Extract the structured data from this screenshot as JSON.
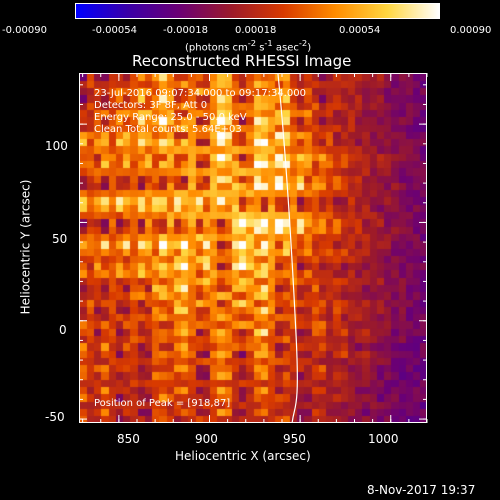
{
  "colorbar": {
    "stops": [
      "#0000ff",
      "#3a00a8",
      "#6b0074",
      "#9c1a2a",
      "#d83a00",
      "#ff8c00",
      "#ffd640",
      "#ffffff"
    ],
    "ticks": [
      "-0.00090",
      "-0.00054",
      "-0.00018",
      "0.00018",
      "0.00054",
      "0.00090"
    ],
    "unit_label_html": "(photons cm<sup>-2</sup> s<sup>-1</sup> asec<sup>-2</sup>)"
  },
  "title": "Reconstructed RHESSI Image",
  "axes": {
    "x_label": "Heliocentric X (arcsec)",
    "y_label": "Heliocentric Y (arcsec)",
    "x_ticks": [
      "850",
      "900",
      "950",
      "1000"
    ],
    "y_ticks": [
      "100",
      "50",
      "0",
      "-50"
    ],
    "xlim": [
      828,
      1020
    ],
    "ylim": [
      -52,
      126
    ]
  },
  "annotations": {
    "line1": "23-Jul-2016 09:07:34.000 to 09:17:34.000",
    "line2": "Detectors: 3F 8F, Att 0",
    "line3": "Energy Range: 25.0 - 50.0 keV",
    "line4": "Clean     Total counts: 5.64E+03",
    "peak": "Position of Peak = [918,87]"
  },
  "timestamp": "8-Nov-2017 19:37",
  "colors": {
    "background": "#000000",
    "foreground": "#ffffff"
  }
}
